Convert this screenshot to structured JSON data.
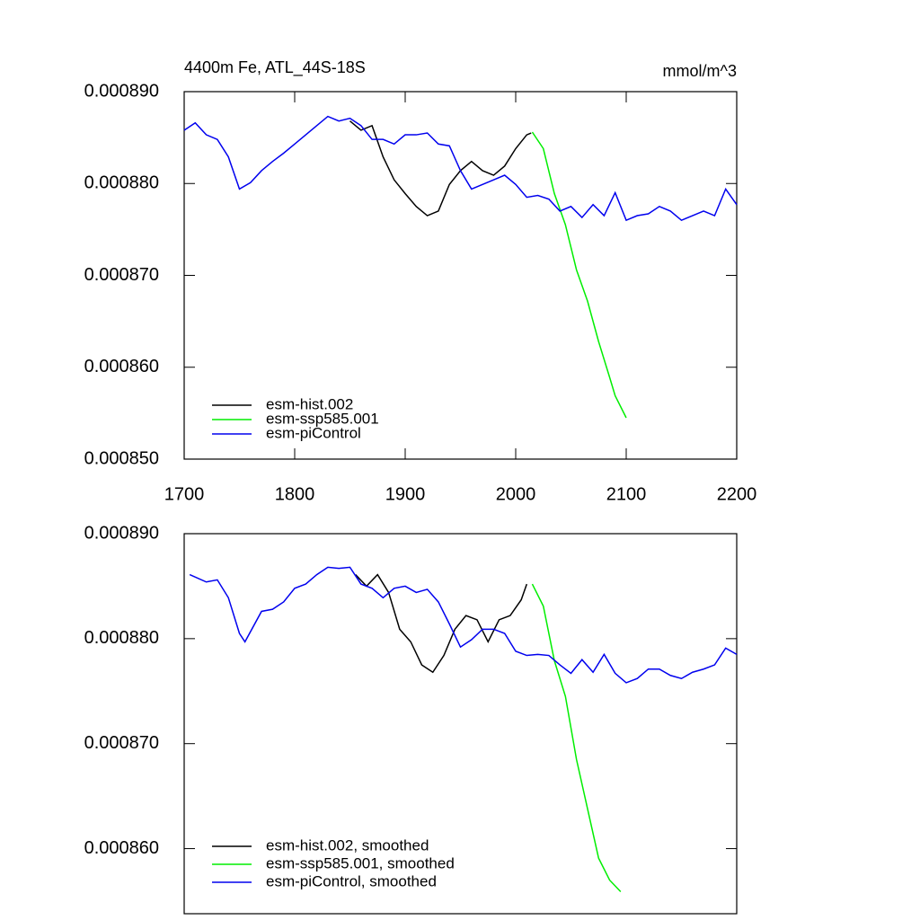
{
  "chart_data": [
    {
      "type": "line",
      "title": "4400m Fe, ATL_44S-18S",
      "subtitle": "mmol/m^3",
      "xlim": [
        1700,
        2200
      ],
      "xticks": [
        1700,
        1800,
        1900,
        2000,
        2100,
        2200
      ],
      "ylim": [
        0.00085,
        0.00089
      ],
      "yticks": [
        {
          "value": 0.00089,
          "label": "0.000890"
        },
        {
          "value": 0.00088,
          "label": "0.000880"
        },
        {
          "value": 0.00087,
          "label": "0.000870"
        },
        {
          "value": 0.00086,
          "label": "0.000860"
        },
        {
          "value": 0.00085,
          "label": "0.000850"
        }
      ],
      "series": [
        {
          "name": "esm-hist.002",
          "color": "#000000",
          "x": [
            1850,
            1860,
            1870,
            1880,
            1890,
            1900,
            1910,
            1920,
            1930,
            1940,
            1950,
            1960,
            1970,
            1980,
            1990,
            2000,
            2010,
            2014
          ],
          "values": [
            0.0008868,
            0.0008858,
            0.0008863,
            0.0008829,
            0.0008804,
            0.0008789,
            0.0008775,
            0.0008765,
            0.000877,
            0.0008799,
            0.0008814,
            0.0008824,
            0.0008814,
            0.0008809,
            0.0008819,
            0.0008838,
            0.0008853,
            0.0008855
          ]
        },
        {
          "name": "esm-ssp585.001",
          "color": "#00ee00",
          "x": [
            2015,
            2025,
            2035,
            2045,
            2055,
            2065,
            2075,
            2085,
            2090,
            2100
          ],
          "values": [
            0.0008856,
            0.0008838,
            0.0008789,
            0.0008755,
            0.0008706,
            0.0008672,
            0.0008628,
            0.0008589,
            0.0008569,
            0.0008545
          ]
        },
        {
          "name": "esm-piControl",
          "color": "#0000ee",
          "x": [
            1700,
            1710,
            1720,
            1730,
            1740,
            1750,
            1760,
            1770,
            1780,
            1790,
            1800,
            1810,
            1820,
            1830,
            1840,
            1850,
            1860,
            1870,
            1880,
            1890,
            1900,
            1910,
            1920,
            1930,
            1940,
            1950,
            1960,
            1970,
            1980,
            1990,
            2000,
            2010,
            2020,
            2030,
            2040,
            2050,
            2060,
            2070,
            2080,
            2090,
            2100,
            2110,
            2120,
            2130,
            2140,
            2150,
            2160,
            2170,
            2180,
            2190,
            2200
          ],
          "values": [
            0.0008858,
            0.0008866,
            0.0008853,
            0.0008848,
            0.0008829,
            0.0008794,
            0.0008801,
            0.0008814,
            0.0008824,
            0.0008833,
            0.0008843,
            0.0008853,
            0.0008863,
            0.0008873,
            0.0008868,
            0.0008871,
            0.0008863,
            0.0008848,
            0.0008848,
            0.0008843,
            0.0008853,
            0.0008853,
            0.0008855,
            0.0008843,
            0.0008841,
            0.0008814,
            0.0008794,
            0.0008799,
            0.0008804,
            0.0008809,
            0.0008799,
            0.0008785,
            0.0008787,
            0.0008783,
            0.000877,
            0.0008775,
            0.0008763,
            0.0008777,
            0.0008765,
            0.000879,
            0.000876,
            0.0008765,
            0.0008767,
            0.0008775,
            0.000877,
            0.000876,
            0.0008765,
            0.000877,
            0.0008765,
            0.0008794,
            0.0008777
          ]
        }
      ]
    },
    {
      "type": "line",
      "xlim": [
        1700,
        2200
      ],
      "ylim": [
        0.0008538,
        0.00089
      ],
      "yticks": [
        {
          "value": 0.00089,
          "label": "0.000890"
        },
        {
          "value": 0.00088,
          "label": "0.000880"
        },
        {
          "value": 0.00087,
          "label": "0.000870"
        },
        {
          "value": 0.00086,
          "label": "0.000860"
        }
      ],
      "series": [
        {
          "name": "esm-hist.002, smoothed",
          "color": "#000000",
          "x": [
            1855,
            1865,
            1875,
            1885,
            1895,
            1905,
            1915,
            1925,
            1935,
            1945,
            1955,
            1965,
            1975,
            1985,
            1995,
            2005,
            2010
          ],
          "values": [
            0.0008861,
            0.000885,
            0.0008861,
            0.0008844,
            0.0008809,
            0.0008797,
            0.0008775,
            0.0008768,
            0.0008784,
            0.0008809,
            0.0008822,
            0.0008818,
            0.0008797,
            0.0008818,
            0.0008822,
            0.0008837,
            0.0008852
          ]
        },
        {
          "name": "esm-ssp585.001, smoothed",
          "color": "#00ee00",
          "x": [
            2015,
            2025,
            2035,
            2045,
            2055,
            2065,
            2075,
            2085,
            2095
          ],
          "values": [
            0.0008852,
            0.0008831,
            0.0008779,
            0.0008745,
            0.0008685,
            0.0008638,
            0.0008591,
            0.000857,
            0.0008559
          ]
        },
        {
          "name": "esm-piControl, smoothed",
          "color": "#0000ee",
          "x": [
            1705,
            1720,
            1730,
            1740,
            1750,
            1755,
            1770,
            1780,
            1790,
            1800,
            1810,
            1820,
            1830,
            1840,
            1850,
            1860,
            1870,
            1880,
            1890,
            1900,
            1910,
            1920,
            1930,
            1940,
            1950,
            1960,
            1970,
            1980,
            1990,
            2000,
            2010,
            2020,
            2030,
            2040,
            2050,
            2060,
            2070,
            2080,
            2090,
            2100,
            2110,
            2120,
            2130,
            2140,
            2150,
            2160,
            2170,
            2180,
            2190,
            2200
          ],
          "values": [
            0.0008861,
            0.0008854,
            0.0008856,
            0.0008839,
            0.0008805,
            0.0008797,
            0.0008826,
            0.0008828,
            0.0008835,
            0.0008848,
            0.0008852,
            0.0008861,
            0.0008868,
            0.0008867,
            0.0008868,
            0.0008852,
            0.0008848,
            0.0008839,
            0.0008848,
            0.000885,
            0.0008844,
            0.0008847,
            0.0008835,
            0.0008814,
            0.0008792,
            0.0008799,
            0.0008809,
            0.0008809,
            0.0008805,
            0.0008788,
            0.0008784,
            0.0008785,
            0.0008784,
            0.0008775,
            0.0008767,
            0.000878,
            0.0008768,
            0.0008785,
            0.0008767,
            0.0008758,
            0.0008762,
            0.0008771,
            0.0008771,
            0.0008765,
            0.0008762,
            0.0008768,
            0.0008771,
            0.0008775,
            0.0008791,
            0.0008785
          ]
        }
      ]
    }
  ]
}
